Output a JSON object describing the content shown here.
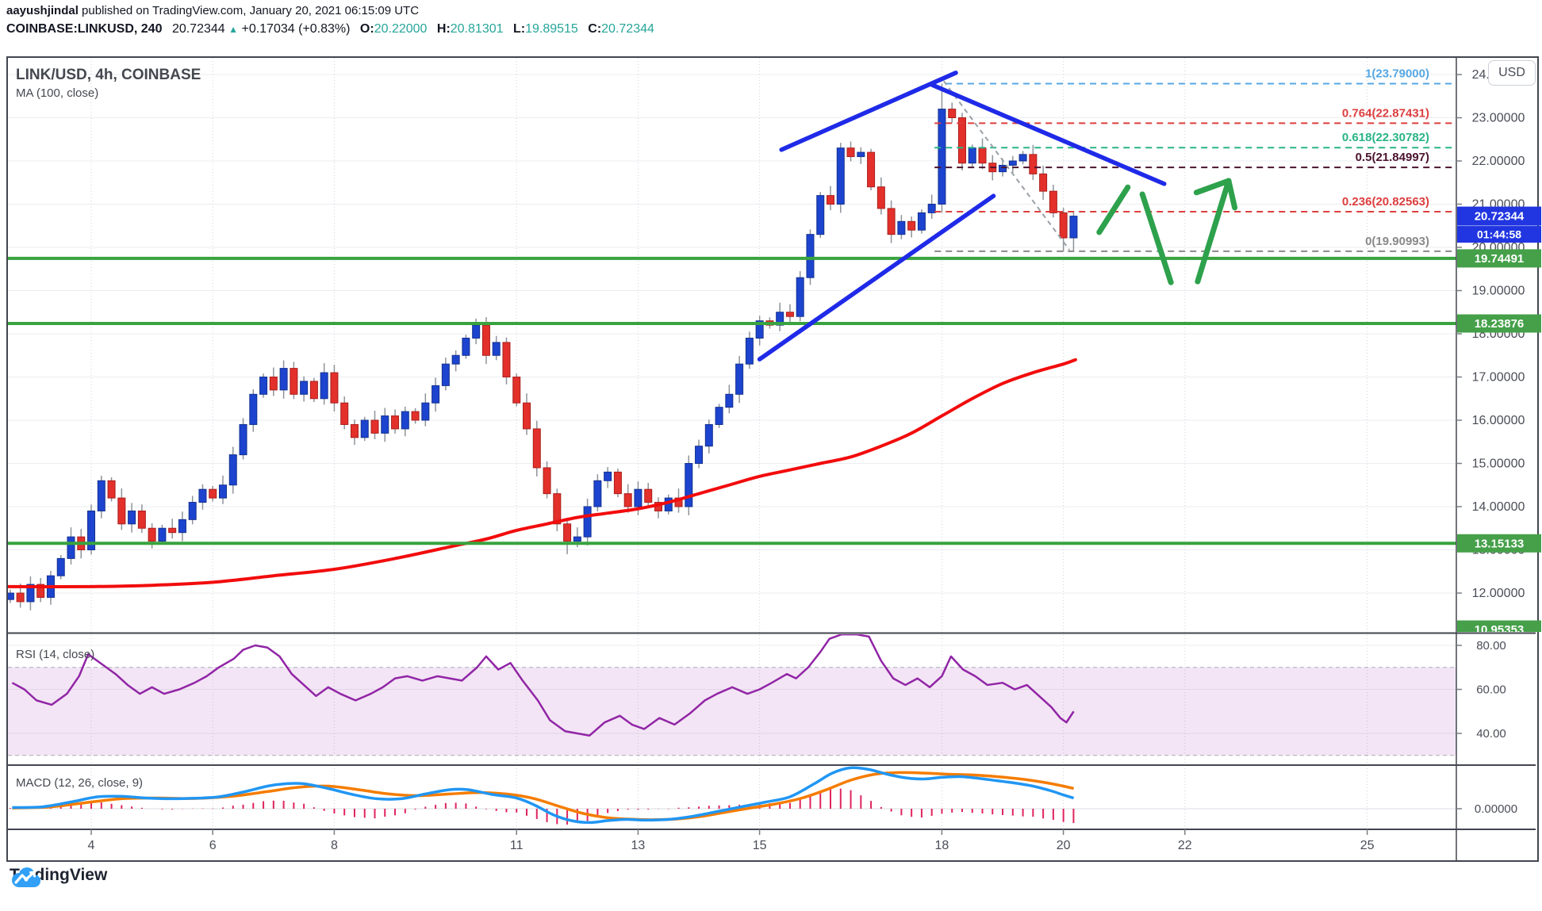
{
  "header": {
    "byline_author": "aayushjindal",
    "byline_rest": " published on TradingView.com, January 20, 2021 06:15:09 UTC",
    "symbol": "COINBASE:LINKUSD, 240",
    "last_price": "20.72344",
    "triangle": "▲",
    "change": "+0.17034 (+0.83%)",
    "ohlc": [
      {
        "k": "O:",
        "v": "20.22000"
      },
      {
        "k": "H:",
        "v": "20.81301"
      },
      {
        "k": "L:",
        "v": "19.89515"
      },
      {
        "k": "C:",
        "v": "20.72344"
      }
    ]
  },
  "legends": {
    "main_title": "LINK/USD, 4h, COINBASE",
    "ma": "MA (100, close)",
    "rsi": "RSI (14, close)",
    "macd": "MACD (12, 26, close, 9)"
  },
  "price_scale": {
    "currency_button": "USD",
    "current_price": {
      "label": "20.72344",
      "price": 20.72344,
      "countdown": "01:44:58"
    },
    "tick_labels": [
      "24.00000",
      "23.00000",
      "22.00000",
      "21.00000",
      "20.00000",
      "19.00000",
      "18.00000",
      "17.00000",
      "16.00000",
      "15.00000",
      "14.00000",
      "13.00000",
      "12.00000"
    ],
    "ticks": [
      24,
      23,
      22,
      21,
      20,
      19,
      18,
      17,
      16,
      15,
      14,
      13,
      12
    ]
  },
  "footer": {
    "brand": "TradingView"
  },
  "colors": {
    "up": "#1d44cf",
    "up_border": "#14318f",
    "down": "#e3302b",
    "down_border": "#aa1f1c",
    "wick": "#8e939a",
    "ma": "#f20c0c",
    "trend_blue": "#1f2ae8",
    "annot_green": "#2da14c",
    "level_green": "#39a33f",
    "chip_green": "#45a049",
    "chip_blue": "#2136e0",
    "teal": "#26a69a",
    "axis_text": "#4a4d57",
    "grid": "#ebedf1",
    "vgrid": "#cfd3da"
  },
  "chart_data": {
    "type": "candlestick",
    "title": "LINK/USD, 4h, COINBASE",
    "exchange": "COINBASE",
    "interval": "4h",
    "x_axis": {
      "unit": "day of January 2021",
      "tick_days": [
        4,
        6,
        8,
        11,
        13,
        15,
        18,
        20,
        22,
        25
      ],
      "tick_labels": [
        "4",
        "6",
        "8",
        "11",
        "13",
        "15",
        "18",
        "20",
        "22",
        "25"
      ]
    },
    "y_axis": {
      "visible_range": [
        11.1,
        24.4
      ],
      "grid_prices": [
        24,
        23,
        22,
        21,
        20,
        19,
        18,
        17,
        16,
        15,
        14,
        13,
        12
      ]
    },
    "candles": {
      "start_day": 2.667,
      "interval_days": 0.16667,
      "first_open": 11.85,
      "closes": [
        12.0,
        11.8,
        12.2,
        11.9,
        12.4,
        12.8,
        13.3,
        13.0,
        13.9,
        14.6,
        14.2,
        13.6,
        13.9,
        13.5,
        13.2,
        13.5,
        13.4,
        13.7,
        14.1,
        14.4,
        14.2,
        14.5,
        15.2,
        15.9,
        16.6,
        17.0,
        16.7,
        17.2,
        16.6,
        16.9,
        16.5,
        17.1,
        16.4,
        15.9,
        15.6,
        16.0,
        15.7,
        16.1,
        15.8,
        16.2,
        16.0,
        16.4,
        16.8,
        17.3,
        17.5,
        17.9,
        18.2,
        17.5,
        17.8,
        17.0,
        16.4,
        15.8,
        14.9,
        14.3,
        13.6,
        13.2,
        13.3,
        14.0,
        14.6,
        14.8,
        14.3,
        14.0,
        14.4,
        14.1,
        13.9,
        14.2,
        14.0,
        15.0,
        15.4,
        15.9,
        16.3,
        16.6,
        17.3,
        17.9,
        18.3,
        18.2,
        18.5,
        18.4,
        19.3,
        20.3,
        21.2,
        21.0,
        22.3,
        22.1,
        22.2,
        21.4,
        20.9,
        20.3,
        20.6,
        20.4,
        20.8,
        21.0,
        23.2,
        23.0,
        21.95,
        22.3,
        21.95,
        21.75,
        21.9,
        22.0,
        22.15,
        21.7,
        21.3,
        20.8,
        20.22,
        20.723
      ],
      "high_overrides": {
        "46": 18.35,
        "82": 22.42,
        "92": 23.79,
        "105": 20.81301
      },
      "low_overrides": {
        "55": 12.9,
        "104": 19.9,
        "105": 19.89515
      }
    },
    "ma100": {
      "label": "MA (100, close)",
      "points": [
        [
          2.6,
          12.15
        ],
        [
          4,
          12.15
        ],
        [
          5,
          12.18
        ],
        [
          6,
          12.25
        ],
        [
          7,
          12.4
        ],
        [
          8,
          12.55
        ],
        [
          9,
          12.8
        ],
        [
          10,
          13.1
        ],
        [
          10.5,
          13.25
        ],
        [
          11,
          13.45
        ],
        [
          11.5,
          13.6
        ],
        [
          12,
          13.75
        ],
        [
          12.5,
          13.85
        ],
        [
          13,
          13.95
        ],
        [
          13.5,
          14.1
        ],
        [
          14,
          14.3
        ],
        [
          14.5,
          14.5
        ],
        [
          15,
          14.7
        ],
        [
          15.5,
          14.85
        ],
        [
          16,
          15.0
        ],
        [
          16.5,
          15.15
        ],
        [
          17,
          15.4
        ],
        [
          17.5,
          15.7
        ],
        [
          18,
          16.1
        ],
        [
          18.5,
          16.5
        ],
        [
          19,
          16.85
        ],
        [
          19.5,
          17.1
        ],
        [
          20,
          17.3
        ],
        [
          20.2,
          17.4
        ]
      ]
    },
    "fib_levels": [
      {
        "label": "1(23.79000)",
        "price": 23.79,
        "color": "#57a7e3",
        "start_day": 18.06
      },
      {
        "label": "0.764(22.87431)",
        "price": 22.87431,
        "color": "#dc3e3e",
        "start_day": 17.88
      },
      {
        "label": "0.618(22.30782)",
        "price": 22.30782,
        "color": "#28b487",
        "start_day": 17.88
      },
      {
        "label": "0.5(21.84997)",
        "price": 21.84997,
        "color": "#4b132f",
        "start_day": 17.88
      },
      {
        "label": "0.236(20.82563)",
        "price": 20.82563,
        "color": "#dc3e3e",
        "start_day": 17.88
      },
      {
        "label": "0(19.90993)",
        "price": 19.90993,
        "color": "#898989",
        "start_day": 17.88
      }
    ],
    "fib_baseline": {
      "d1": 18.03,
      "p1": 23.85,
      "d2": 20.1,
      "p2": 19.94
    },
    "support_lines": [
      {
        "price": 19.74491,
        "label": "19.74491"
      },
      {
        "price": 18.23876,
        "label": "18.23876"
      },
      {
        "price": 13.15133,
        "label": "13.15133"
      }
    ],
    "clipped_level": {
      "price": 10.83,
      "label": "10.95353"
    },
    "trend_lines": [
      {
        "name": "resistance-upper",
        "d1": 15.36,
        "p1": 22.26,
        "d2": 18.23,
        "p2": 24.04
      },
      {
        "name": "breakdown",
        "d1": 17.84,
        "p1": 23.76,
        "d2": 21.66,
        "p2": 21.47
      },
      {
        "name": "support-rising",
        "d1": 15.0,
        "p1": 17.41,
        "d2": 18.85,
        "p2": 21.19
      }
    ],
    "arrows": {
      "segments": [
        [
          20.59,
          20.35,
          21.06,
          21.39
        ],
        [
          21.3,
          21.23,
          21.77,
          19.19
        ],
        [
          22.21,
          19.21,
          22.72,
          21.54
        ]
      ],
      "head": {
        "tip": [
          22.72,
          21.54
        ],
        "barbs": [
          [
            22.19,
            21.27
          ],
          [
            22.82,
            20.92
          ]
        ]
      }
    },
    "rsi": {
      "label": "RSI (14, close)",
      "color": "#9125a6",
      "band": [
        30,
        70
      ],
      "ticks": [
        80,
        60,
        40
      ],
      "tick_labels": [
        "80.00",
        "60.00",
        "40.00"
      ],
      "points": [
        [
          2.7,
          63
        ],
        [
          2.9,
          60
        ],
        [
          3.1,
          55
        ],
        [
          3.35,
          53
        ],
        [
          3.6,
          58
        ],
        [
          3.8,
          66
        ],
        [
          3.95,
          76
        ],
        [
          4.15,
          72
        ],
        [
          4.4,
          67
        ],
        [
          4.6,
          62
        ],
        [
          4.8,
          58
        ],
        [
          5.0,
          61
        ],
        [
          5.2,
          58
        ],
        [
          5.45,
          60
        ],
        [
          5.7,
          63
        ],
        [
          5.9,
          66
        ],
        [
          6.1,
          70
        ],
        [
          6.35,
          74
        ],
        [
          6.5,
          78
        ],
        [
          6.7,
          80
        ],
        [
          6.9,
          79
        ],
        [
          7.1,
          75
        ],
        [
          7.3,
          67
        ],
        [
          7.5,
          62
        ],
        [
          7.7,
          57
        ],
        [
          7.9,
          61
        ],
        [
          8.1,
          58
        ],
        [
          8.35,
          55
        ],
        [
          8.6,
          58
        ],
        [
          8.8,
          61
        ],
        [
          9.0,
          65
        ],
        [
          9.2,
          66
        ],
        [
          9.45,
          64
        ],
        [
          9.7,
          66
        ],
        [
          9.9,
          65
        ],
        [
          10.1,
          64
        ],
        [
          10.35,
          70
        ],
        [
          10.5,
          75
        ],
        [
          10.7,
          69
        ],
        [
          10.9,
          72
        ],
        [
          11.1,
          64
        ],
        [
          11.35,
          55
        ],
        [
          11.55,
          46
        ],
        [
          11.8,
          41
        ],
        [
          12.0,
          40
        ],
        [
          12.2,
          39
        ],
        [
          12.45,
          45
        ],
        [
          12.7,
          48
        ],
        [
          12.9,
          44
        ],
        [
          13.1,
          42
        ],
        [
          13.35,
          47
        ],
        [
          13.6,
          44
        ],
        [
          13.85,
          49
        ],
        [
          14.1,
          55
        ],
        [
          14.3,
          58
        ],
        [
          14.55,
          61
        ],
        [
          14.8,
          58
        ],
        [
          15.0,
          60
        ],
        [
          15.2,
          63
        ],
        [
          15.45,
          67
        ],
        [
          15.6,
          65
        ],
        [
          15.8,
          70
        ],
        [
          16.0,
          77
        ],
        [
          16.15,
          83
        ],
        [
          16.35,
          85
        ],
        [
          16.6,
          85
        ],
        [
          16.8,
          84
        ],
        [
          17.0,
          73
        ],
        [
          17.2,
          65
        ],
        [
          17.4,
          62
        ],
        [
          17.6,
          65
        ],
        [
          17.8,
          61
        ],
        [
          18.0,
          66
        ],
        [
          18.15,
          75
        ],
        [
          18.35,
          69
        ],
        [
          18.55,
          66
        ],
        [
          18.75,
          62
        ],
        [
          19.0,
          63
        ],
        [
          19.2,
          60
        ],
        [
          19.4,
          62
        ],
        [
          19.6,
          57
        ],
        [
          19.8,
          52
        ],
        [
          19.95,
          47
        ],
        [
          20.05,
          45
        ],
        [
          20.17,
          50
        ]
      ]
    },
    "macd": {
      "label": "MACD (12, 26, close, 9)",
      "zero_label": "0.00000",
      "macd_color": "#2196f3",
      "signal_color": "#f57c00",
      "hist_color": "#e0245e",
      "macd_points": [
        [
          2.7,
          0.05
        ],
        [
          3.2,
          0.08
        ],
        [
          3.7,
          0.3
        ],
        [
          4.1,
          0.5
        ],
        [
          4.5,
          0.52
        ],
        [
          4.9,
          0.45
        ],
        [
          5.3,
          0.42
        ],
        [
          5.7,
          0.44
        ],
        [
          6.1,
          0.5
        ],
        [
          6.5,
          0.7
        ],
        [
          6.9,
          0.95
        ],
        [
          7.2,
          1.05
        ],
        [
          7.5,
          1.05
        ],
        [
          7.9,
          0.85
        ],
        [
          8.3,
          0.6
        ],
        [
          8.7,
          0.42
        ],
        [
          9.1,
          0.42
        ],
        [
          9.5,
          0.62
        ],
        [
          9.9,
          0.8
        ],
        [
          10.2,
          0.8
        ],
        [
          10.6,
          0.6
        ],
        [
          11.0,
          0.45
        ],
        [
          11.3,
          0.15
        ],
        [
          11.6,
          -0.25
        ],
        [
          11.9,
          -0.5
        ],
        [
          12.2,
          -0.58
        ],
        [
          12.5,
          -0.5
        ],
        [
          12.8,
          -0.45
        ],
        [
          13.1,
          -0.48
        ],
        [
          13.5,
          -0.45
        ],
        [
          13.9,
          -0.32
        ],
        [
          14.3,
          -0.12
        ],
        [
          14.7,
          0.08
        ],
        [
          15.1,
          0.28
        ],
        [
          15.5,
          0.5
        ],
        [
          15.9,
          1.05
        ],
        [
          16.2,
          1.5
        ],
        [
          16.5,
          1.72
        ],
        [
          16.8,
          1.65
        ],
        [
          17.1,
          1.45
        ],
        [
          17.4,
          1.3
        ],
        [
          17.7,
          1.25
        ],
        [
          18.0,
          1.32
        ],
        [
          18.3,
          1.35
        ],
        [
          18.6,
          1.28
        ],
        [
          18.9,
          1.18
        ],
        [
          19.2,
          1.08
        ],
        [
          19.5,
          0.95
        ],
        [
          19.8,
          0.75
        ],
        [
          20.0,
          0.58
        ],
        [
          20.17,
          0.45
        ]
      ],
      "signal_points": [
        [
          2.7,
          0.03
        ],
        [
          3.3,
          0.07
        ],
        [
          3.9,
          0.25
        ],
        [
          4.5,
          0.42
        ],
        [
          5.1,
          0.45
        ],
        [
          5.7,
          0.43
        ],
        [
          6.3,
          0.52
        ],
        [
          6.9,
          0.72
        ],
        [
          7.4,
          0.9
        ],
        [
          7.9,
          0.95
        ],
        [
          8.4,
          0.8
        ],
        [
          8.9,
          0.62
        ],
        [
          9.4,
          0.55
        ],
        [
          9.9,
          0.62
        ],
        [
          10.4,
          0.68
        ],
        [
          10.9,
          0.6
        ],
        [
          11.3,
          0.42
        ],
        [
          11.7,
          0.1
        ],
        [
          12.1,
          -0.2
        ],
        [
          12.5,
          -0.38
        ],
        [
          12.9,
          -0.44
        ],
        [
          13.3,
          -0.46
        ],
        [
          13.7,
          -0.42
        ],
        [
          14.1,
          -0.3
        ],
        [
          14.5,
          -0.12
        ],
        [
          14.9,
          0.05
        ],
        [
          15.3,
          0.22
        ],
        [
          15.7,
          0.45
        ],
        [
          16.1,
          0.8
        ],
        [
          16.5,
          1.2
        ],
        [
          16.9,
          1.45
        ],
        [
          17.3,
          1.52
        ],
        [
          17.7,
          1.5
        ],
        [
          18.1,
          1.45
        ],
        [
          18.5,
          1.42
        ],
        [
          18.9,
          1.35
        ],
        [
          19.3,
          1.25
        ],
        [
          19.7,
          1.1
        ],
        [
          20.0,
          0.95
        ],
        [
          20.17,
          0.85
        ]
      ]
    }
  }
}
